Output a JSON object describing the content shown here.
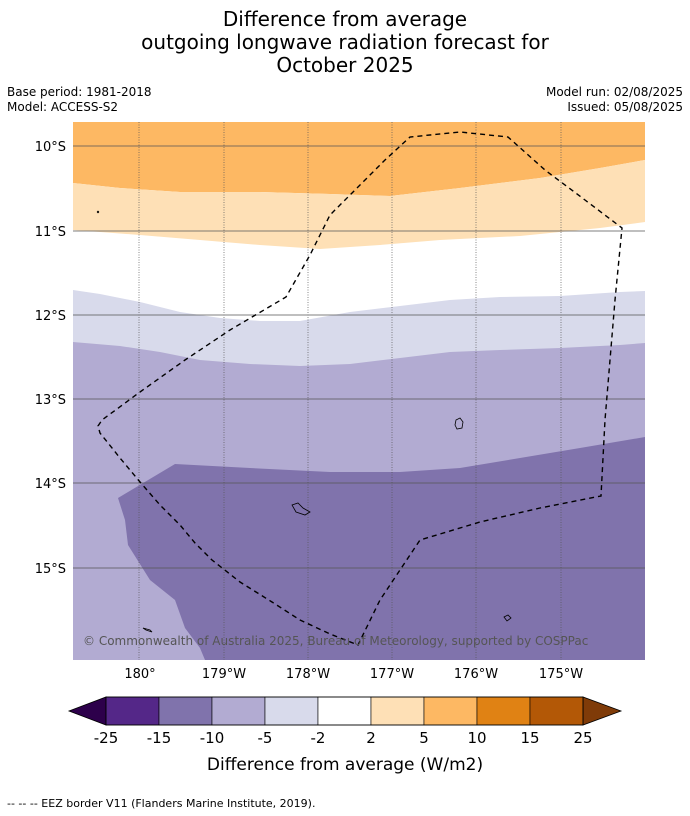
{
  "title_lines": [
    "Difference from average",
    "outgoing longwave radiation forecast for",
    "October 2025"
  ],
  "meta_left": [
    "Base period: 1981-2018",
    "Model: ACCESS-S2"
  ],
  "meta_right": [
    "Model run: 02/08/2025",
    "Issued: 05/08/2025"
  ],
  "map": {
    "lat_labels": [
      "10°S",
      "11°S",
      "12°S",
      "13°S",
      "14°S",
      "15°S"
    ],
    "lon_labels": [
      "180°",
      "179°W",
      "178°W",
      "177°W",
      "176°W",
      "175°W"
    ],
    "copyright": "© Commonwealth of Australia 2025, Bureau of Meteorology, supported by COSPPac",
    "colors": {
      "orange": "#fdb863",
      "light_orange": "#fee0b6",
      "white": "#ffffff",
      "light_purple": "#d8daeb",
      "medium_purple": "#b2abd2",
      "dark_purple": "#8073ac"
    }
  },
  "colorbar": {
    "ticks": [
      "-25",
      "-15",
      "-10",
      "-5",
      "-2",
      "2",
      "5",
      "10",
      "15",
      "25"
    ],
    "colors": [
      "#542788",
      "#8073ac",
      "#b2abd2",
      "#d8daeb",
      "#ffffff",
      "#fee0b6",
      "#fdb863",
      "#e08214",
      "#b35806"
    ],
    "under_color": "#2d004b",
    "over_color": "#7f3b08",
    "label": "Difference from average (W/m2)"
  },
  "footnote": "--  --  -- EEZ border V11 (Flanders Marine Institute, 2019)."
}
